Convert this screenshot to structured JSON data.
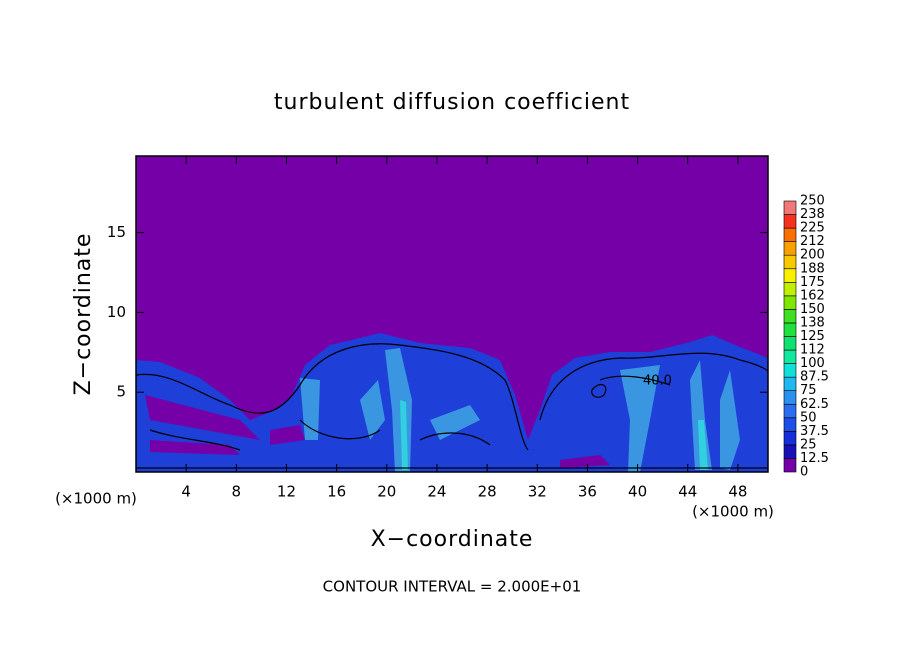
{
  "chart_data": {
    "type": "contour",
    "title": "turbulent diffusion coefficient",
    "xlabel": "X−coordinate",
    "ylabel": "Z−coordinate",
    "xunit": "(×1000 m)",
    "yunit": "(×1000 m)",
    "xlim": [
      0,
      50.4
    ],
    "ylim": [
      0,
      19.8
    ],
    "xticks": [
      4,
      8,
      12,
      16,
      20,
      24,
      28,
      32,
      36,
      40,
      44,
      48
    ],
    "yticks": [
      5,
      10,
      15
    ],
    "annotations": [
      "40.0"
    ],
    "footer": "CONTOUR INTERVAL = 2.000E+01",
    "colorbar": {
      "ticks": [
        0,
        12.5,
        25,
        37.5,
        50,
        62.5,
        75,
        87.5,
        100,
        112,
        125,
        138,
        150,
        162,
        175,
        188,
        200,
        212,
        225,
        238,
        250
      ],
      "colors": [
        "#7500a8",
        "#1a10b8",
        "#1530d8",
        "#1e4ee8",
        "#2a6ef0",
        "#2c90f0",
        "#20b8f0",
        "#10e0d8",
        "#10e8a0",
        "#10e070",
        "#20e040",
        "#40e020",
        "#80e800",
        "#c0f000",
        "#f8f000",
        "#f8c800",
        "#f8a000",
        "#f87000",
        "#f83020",
        "#f07878"
      ]
    }
  }
}
